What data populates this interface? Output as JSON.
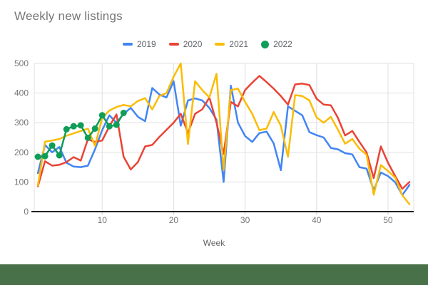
{
  "header": {
    "title": "Weekly new listings"
  },
  "axis": {
    "xlabel": "Week"
  },
  "colors": {
    "background": "#ffffff",
    "footer_bar": "#487149",
    "gridline": "#e0e0e0",
    "axis_line": "#212121",
    "tick_text": "#757575",
    "title_text": "#757575",
    "legend_text": "#5f6368"
  },
  "chart_data": {
    "type": "line",
    "title": "Weekly new listings",
    "xlabel": "Week",
    "ylabel": "",
    "xlim": [
      0.49,
      53.6
    ],
    "ylim": [
      0,
      500
    ],
    "x_ticks": [
      10,
      20,
      30,
      40,
      50
    ],
    "y_ticks": [
      0,
      100,
      200,
      300,
      400,
      500
    ],
    "grid": true,
    "legend_position": "top",
    "x_unit": "week_number",
    "weeks_start": 1,
    "series": [
      {
        "name": "2019",
        "color": "#4285F4",
        "marker": "none",
        "values": [
          130,
          225,
          200,
          218,
          165,
          152,
          150,
          155,
          210,
          275,
          325,
          300,
          330,
          350,
          320,
          305,
          417,
          395,
          385,
          440,
          290,
          375,
          382,
          375,
          350,
          310,
          100,
          425,
          300,
          255,
          235,
          265,
          270,
          230,
          140,
          355,
          340,
          325,
          268,
          258,
          250,
          215,
          210,
          197,
          193,
          150,
          145,
          72,
          132,
          120,
          99,
          56,
          90
        ]
      },
      {
        "name": "2020",
        "color": "#EA4335",
        "marker": "none",
        "values": [
          85,
          170,
          155,
          158,
          167,
          184,
          172,
          244,
          235,
          240,
          288,
          328,
          185,
          142,
          167,
          220,
          225,
          252,
          276,
          300,
          330,
          265,
          330,
          345,
          385,
          300,
          195,
          370,
          355,
          410,
          435,
          458,
          437,
          415,
          390,
          361,
          429,
          432,
          427,
          381,
          361,
          359,
          316,
          257,
          272,
          235,
          200,
          113,
          220,
          165,
          120,
          77,
          100
        ]
      },
      {
        "name": "2021",
        "color": "#FBBC04",
        "marker": "none",
        "values": [
          88,
          236,
          240,
          245,
          256,
          264,
          272,
          280,
          222,
          316,
          341,
          353,
          360,
          355,
          373,
          383,
          345,
          390,
          400,
          455,
          500,
          228,
          440,
          410,
          385,
          465,
          140,
          410,
          415,
          370,
          330,
          275,
          280,
          336,
          290,
          185,
          393,
          390,
          375,
          318,
          300,
          320,
          276,
          229,
          245,
          212,
          192,
          57,
          157,
          137,
          115,
          55,
          25
        ]
      },
      {
        "name": "2022",
        "color": "#0F9D58",
        "marker": "circle",
        "values": [
          185,
          187,
          223,
          190,
          278,
          288,
          291,
          249,
          280,
          325,
          288,
          293,
          333
        ]
      }
    ]
  }
}
